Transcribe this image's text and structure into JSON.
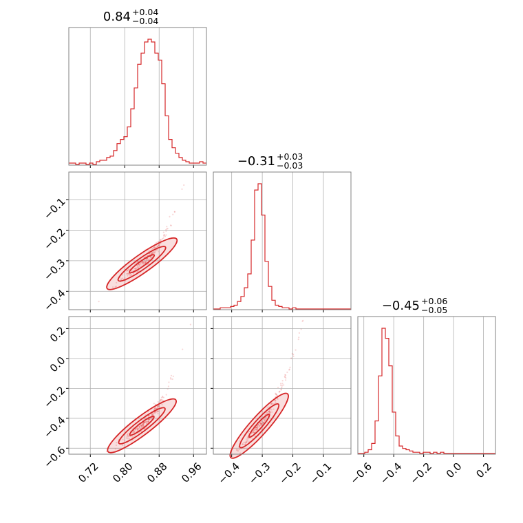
{
  "chart_data": {
    "type": "corner",
    "color": "#d62728",
    "parameters": [
      {
        "title_main": "0.84",
        "title_plus": "+0.04",
        "title_minus": "−0.04",
        "range": [
          0.67,
          0.99
        ]
      },
      {
        "title_main": "−0.31",
        "title_plus": "+0.03",
        "title_minus": "−0.03",
        "range": [
          -0.46,
          -0.01
        ]
      },
      {
        "title_main": "−0.45",
        "title_plus": "+0.06",
        "title_minus": "−0.05",
        "range": [
          -0.64,
          0.28
        ]
      }
    ],
    "ticks": {
      "x0": {
        "values": [
          0.72,
          0.8,
          0.88,
          0.96
        ],
        "labels": [
          "0.72",
          "0.80",
          "0.88",
          "0.96"
        ]
      },
      "x1": {
        "values": [
          -0.4,
          -0.3,
          -0.2,
          -0.1
        ],
        "labels": [
          "−0.4",
          "−0.3",
          "−0.2",
          "−0.1"
        ]
      },
      "x2": {
        "values": [
          -0.6,
          -0.4,
          -0.2,
          0.0,
          0.2
        ],
        "labels": [
          "−0.6",
          "−0.4",
          "−0.2",
          "0.0",
          "0.2"
        ]
      },
      "y1": {
        "values": [
          -0.1,
          -0.2,
          -0.3,
          -0.4
        ],
        "labels": [
          "−0.1",
          "−0.2",
          "−0.3",
          "−0.4"
        ]
      },
      "y2": {
        "values": [
          0.2,
          0.0,
          -0.2,
          -0.4,
          -0.6
        ],
        "labels": [
          "0.2",
          "0.0",
          "−0.2",
          "−0.4",
          "−0.6"
        ]
      }
    },
    "histograms": [
      {
        "param": 0,
        "bin_edges_start": 0.67,
        "bin_width": 0.008,
        "counts": [
          1,
          1,
          0,
          1,
          1,
          0,
          1,
          0,
          2,
          3,
          3,
          5,
          6,
          10,
          15,
          18,
          20,
          27,
          40,
          55,
          72,
          80,
          88,
          90,
          88,
          80,
          75,
          58,
          35,
          18,
          12,
          8,
          5,
          3,
          2,
          1,
          1,
          1,
          2,
          1
        ]
      },
      {
        "param": 1,
        "bin_edges_start": -0.46,
        "bin_width": 0.01125,
        "counts": [
          0,
          0,
          1,
          1,
          1,
          2,
          3,
          6,
          10,
          17,
          28,
          55,
          95,
          100,
          75,
          38,
          18,
          7,
          3,
          2,
          1,
          1,
          0,
          1,
          0,
          0,
          0,
          0,
          0,
          0,
          0,
          0,
          0,
          0,
          0,
          0,
          0,
          0,
          0,
          0
        ]
      },
      {
        "param": 2,
        "bin_edges_start": -0.64,
        "bin_width": 0.023,
        "counts": [
          0,
          0,
          1,
          3,
          8,
          26,
          62,
          100,
          92,
          70,
          33,
          14,
          6,
          4,
          3,
          2,
          1,
          1,
          0,
          1,
          1,
          0,
          1,
          0,
          1,
          0,
          0,
          0,
          0,
          0,
          0,
          0,
          0,
          0,
          0,
          0,
          0,
          0,
          0,
          0
        ]
      }
    ],
    "scatter_panels": [
      {
        "x_param": 0,
        "y_param": 1,
        "center": [
          0.84,
          -0.31
        ],
        "slope": 1.0
      },
      {
        "x_param": 0,
        "y_param": 2,
        "center": [
          0.84,
          -0.45
        ],
        "slope": 2.2
      },
      {
        "x_param": 1,
        "y_param": 2,
        "center": [
          -0.31,
          -0.45
        ],
        "slope": 2.3
      }
    ]
  }
}
